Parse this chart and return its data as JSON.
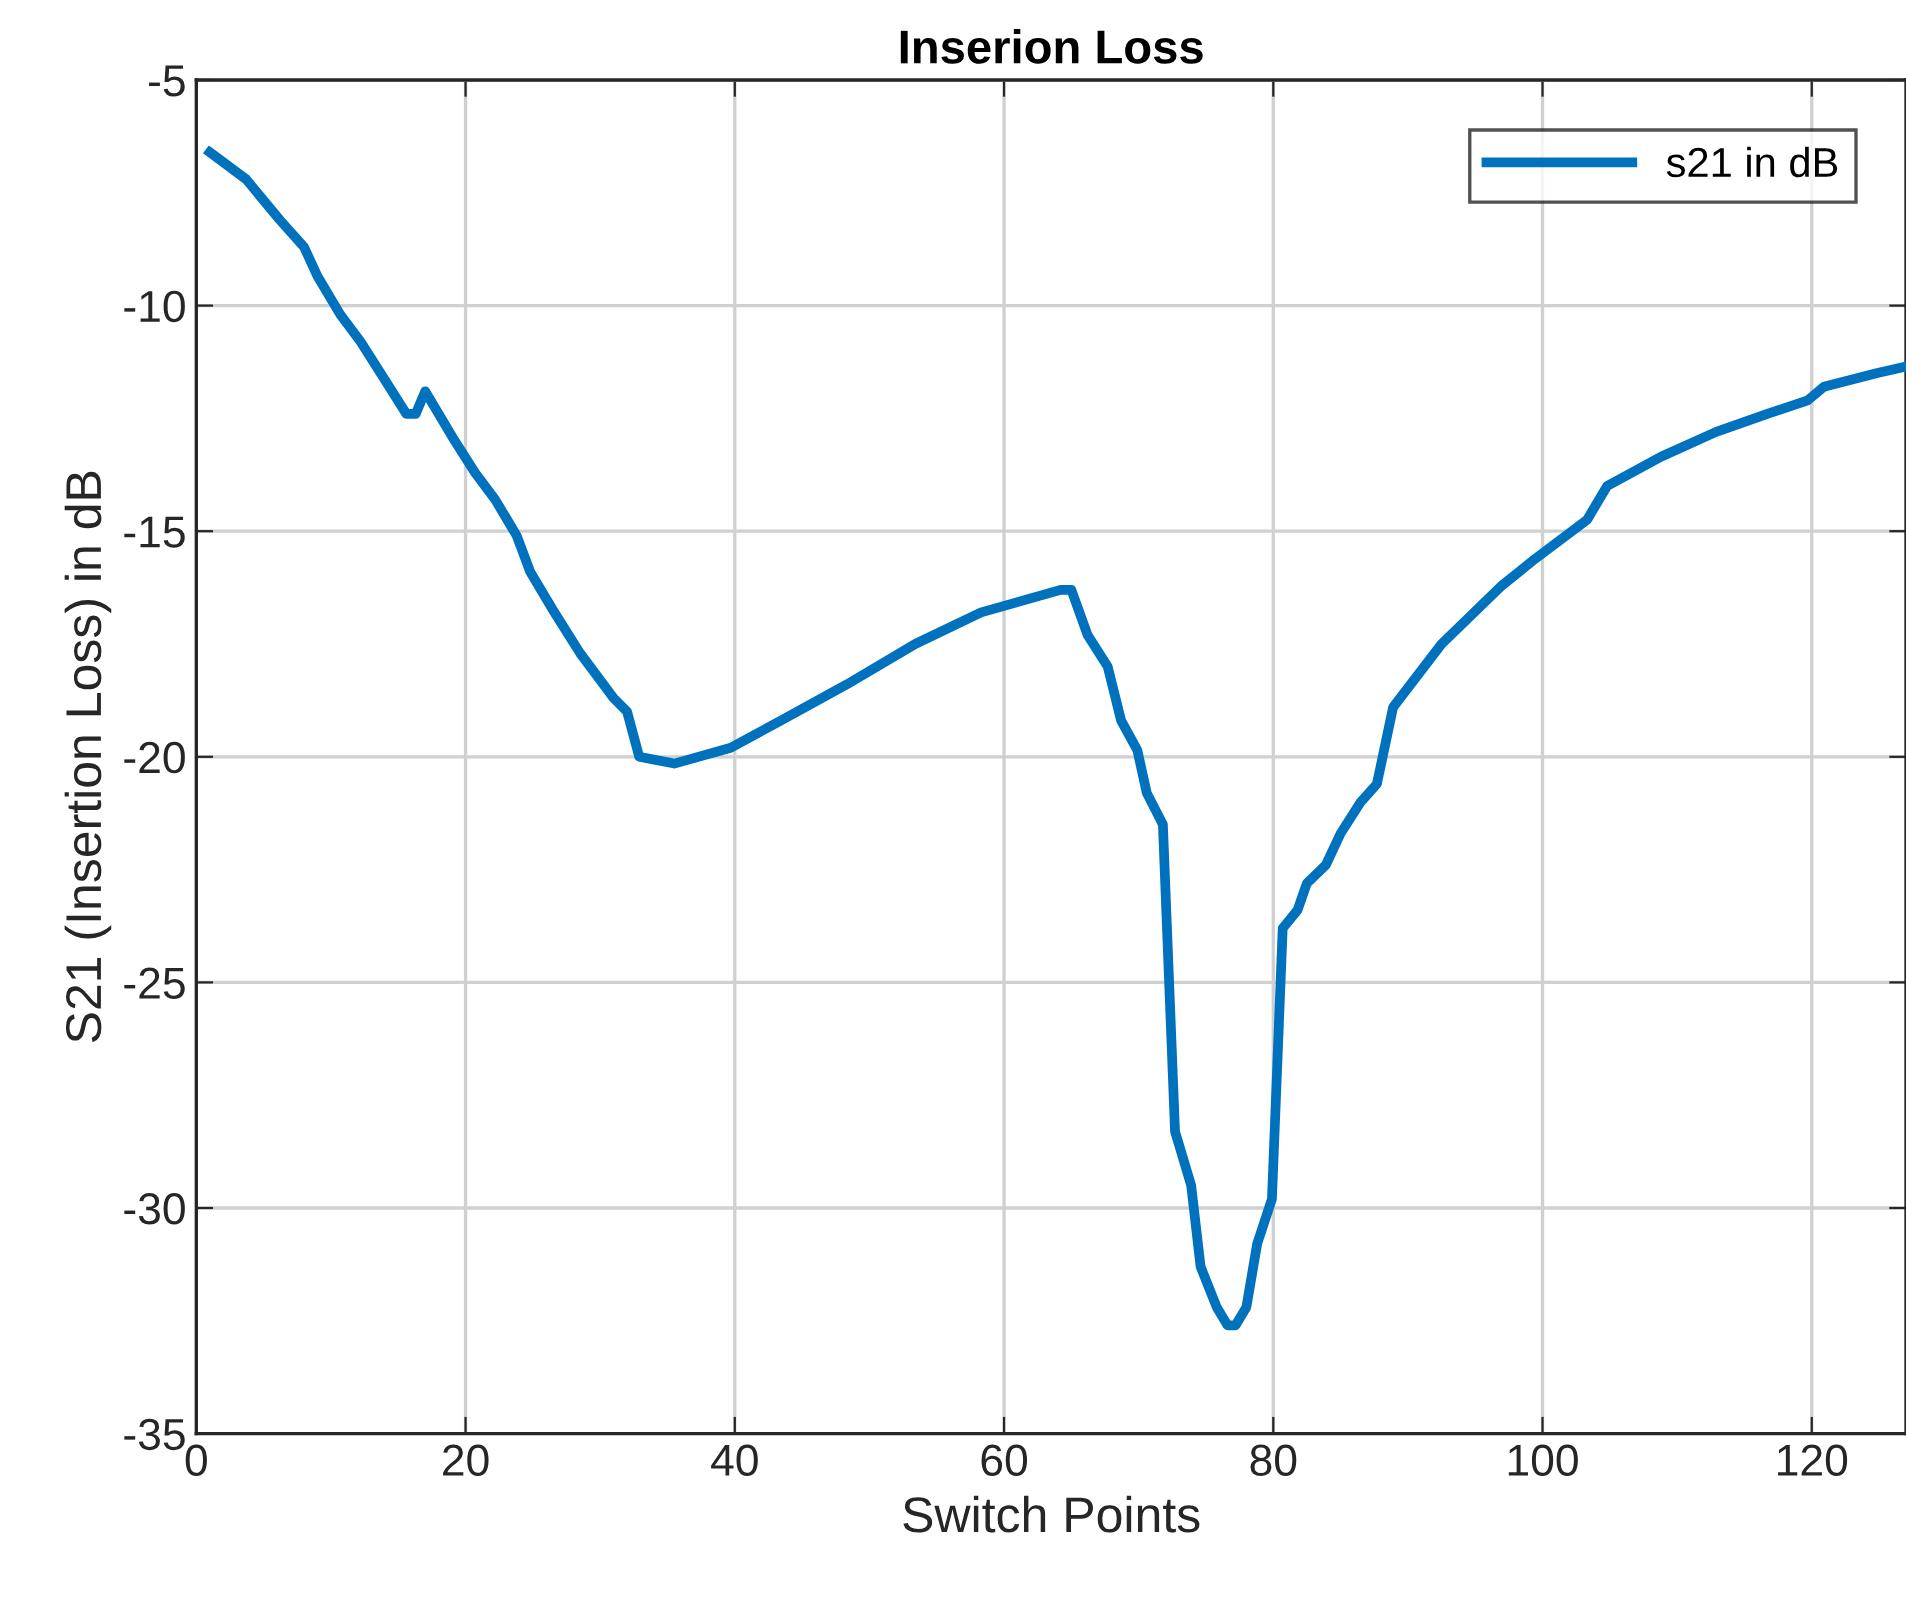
{
  "chart_data": {
    "type": "line",
    "title": "Inserion Loss",
    "xlabel": "Switch Points",
    "ylabel": "S21 (Insertion Loss) in dB",
    "xlim": [
      0,
      127
    ],
    "ylim": [
      -35,
      -5
    ],
    "xticks": [
      0,
      20,
      40,
      60,
      80,
      100,
      120
    ],
    "yticks": [
      -35,
      -30,
      -25,
      -20,
      -15,
      -10,
      -5
    ],
    "grid": true,
    "legend": "top right",
    "line_style": "solid",
    "marker": "none",
    "series": [
      {
        "name": "s21 in dB",
        "color": "#0072bd",
        "x": [
          1,
          3.7,
          6.2,
          8,
          9,
          10.7,
          12.2,
          13.7,
          15.6,
          16.3,
          17,
          19.2,
          20.7,
          22.2,
          23.8,
          24.8,
          26.6,
          28.5,
          31,
          32,
          32.9,
          35.5,
          39.7,
          43.4,
          48.3,
          53.4,
          58.3,
          64.2,
          65,
          66.2,
          67.7,
          68.7,
          69.9,
          70.6,
          71.8,
          72.7,
          73.9,
          74.6,
          75.8,
          76.6,
          77.2,
          78,
          78.8,
          79.9,
          80.7,
          81.8,
          82.5,
          83.9,
          85,
          86.5,
          87.7,
          88.9,
          92.5,
          97,
          99.5,
          103.3,
          104.8,
          108.8,
          112.9,
          116.7,
          119.7,
          120.9,
          124.8,
          127
        ],
        "values": [
          -6.6,
          -7.2,
          -8.1,
          -8.7,
          -9.35,
          -10.2,
          -10.8,
          -11.5,
          -12.4,
          -12.4,
          -11.9,
          -13.0,
          -13.7,
          -14.3,
          -15.1,
          -15.9,
          -16.8,
          -17.7,
          -18.7,
          -19.0,
          -20.0,
          -20.15,
          -19.8,
          -19.2,
          -18.4,
          -17.5,
          -16.8,
          -16.3,
          -16.3,
          -17.3,
          -18.0,
          -19.2,
          -19.85,
          -20.8,
          -21.5,
          -28.3,
          -29.5,
          -31.3,
          -32.2,
          -32.6,
          -32.6,
          -32.2,
          -30.8,
          -29.8,
          -23.8,
          -23.4,
          -22.8,
          -22.4,
          -21.7,
          -21.0,
          -20.6,
          -18.9,
          -17.5,
          -16.2,
          -15.6,
          -14.75,
          -14.0,
          -13.35,
          -12.8,
          -12.4,
          -12.1,
          -11.8,
          -11.5,
          -11.35
        ]
      }
    ]
  }
}
